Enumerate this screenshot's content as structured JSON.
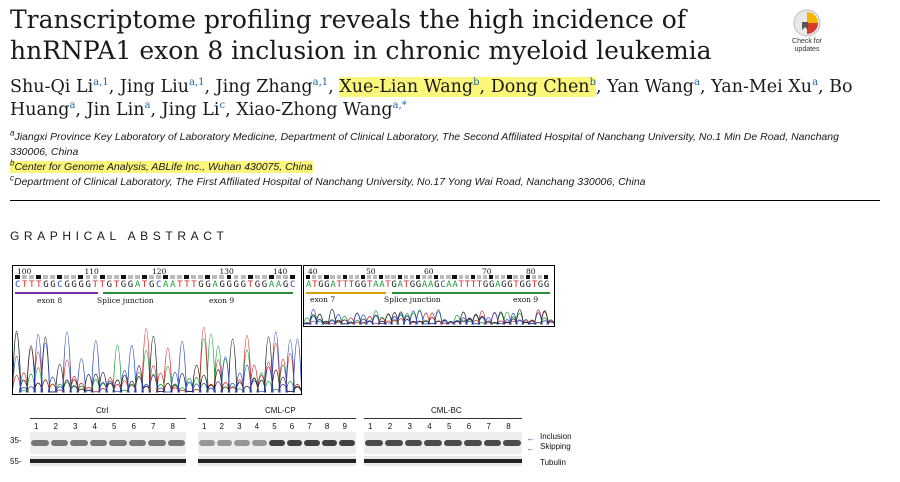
{
  "title": "Transcriptome profiling reveals the high incidence of hnRNPA1 exon 8 inclusion in chronic myeloid leukemia",
  "badge": {
    "line1": "Check for",
    "line2": "updates"
  },
  "authors": [
    {
      "name": "Shu-Qi Li",
      "sup": "a,1",
      "hl": false,
      "sep": ", "
    },
    {
      "name": "Jing Liu",
      "sup": "a,1",
      "hl": false,
      "sep": ", "
    },
    {
      "name": "Jing Zhang",
      "sup": "a,1",
      "hl": false,
      "sep": ", "
    },
    {
      "name": "Xue-Lian Wang",
      "sup": "b",
      "hl": true,
      "sep": ", "
    },
    {
      "name": "Dong Chen",
      "sup": "b",
      "hl": true,
      "sep": ", "
    },
    {
      "name": "Yan Wang",
      "sup": "a",
      "hl": false,
      "sep": ", "
    },
    {
      "name": "Yan-Mei Xu",
      "sup": "a",
      "hl": false,
      "sep": ", "
    },
    {
      "name": "Bo Huang",
      "sup": "a",
      "hl": false,
      "sep": ", "
    },
    {
      "name": "Jin Lin",
      "sup": "a",
      "hl": false,
      "sep": ", "
    },
    {
      "name": "Jing Li",
      "sup": "c",
      "hl": false,
      "sep": ", "
    },
    {
      "name": "Xiao-Zhong Wang",
      "sup": "a,*",
      "hl": false,
      "sep": ""
    }
  ],
  "affiliations": [
    {
      "mark": "a",
      "text": "Jiangxi Province Key Laboratory of Laboratory Medicine, Department of Clinical Laboratory, The Second Affiliated Hospital of Nanchang University, No.1 Min De Road, Nanchang 330006, China",
      "hl": false
    },
    {
      "mark": "b",
      "text": "Center for Genome Analysis, ABLife Inc., Wuhan 430075, China",
      "hl": true
    },
    {
      "mark": "c",
      "text": "Department of Clinical Laboratory, The First Affiliated Hospital of Nanchang University, No.17 Yong Wai Road, Nanchang 330006, China",
      "hl": false
    }
  ],
  "graphical_abstract_heading": "GRAPHICAL ABSTRACT",
  "chromatogram_left": {
    "ticks": [
      "100",
      "110",
      "120",
      "130",
      "140"
    ],
    "sequence": "CTTTGGCGGGGTTGTGGATGCAATTTGGAGGGGTGGAAGC",
    "labels": {
      "left": "exon 8",
      "center": "Splice junction",
      "right": "exon 9"
    }
  },
  "chromatogram_right": {
    "ticks": [
      "40",
      "50",
      "60",
      "70",
      "80"
    ],
    "sequence": "ATGGATTTGGTAATGATGGAAGCAATTTTGGAGGTGGTGG",
    "labels": {
      "left": "exon 7",
      "center": "Splice junction",
      "right": "exon 9"
    }
  },
  "western_blot": {
    "groups": [
      {
        "name": "Ctrl",
        "lanes": [
          "1",
          "2",
          "3",
          "4",
          "5",
          "6",
          "7",
          "8"
        ]
      },
      {
        "name": "CML-CP",
        "lanes": [
          "1",
          "2",
          "3",
          "4",
          "5",
          "6",
          "7",
          "8",
          "9"
        ]
      },
      {
        "name": "CML-BC",
        "lanes": [
          "1",
          "2",
          "3",
          "4",
          "5",
          "6",
          "7",
          "8"
        ]
      }
    ],
    "markers": [
      "35-",
      "55-"
    ],
    "band_labels": [
      "Inclusion",
      "Skipping",
      "Tubulin"
    ],
    "colors": {
      "inclusion_arrow": "#7b2fa8",
      "skipping_arrow": "#2e8b3a"
    }
  }
}
